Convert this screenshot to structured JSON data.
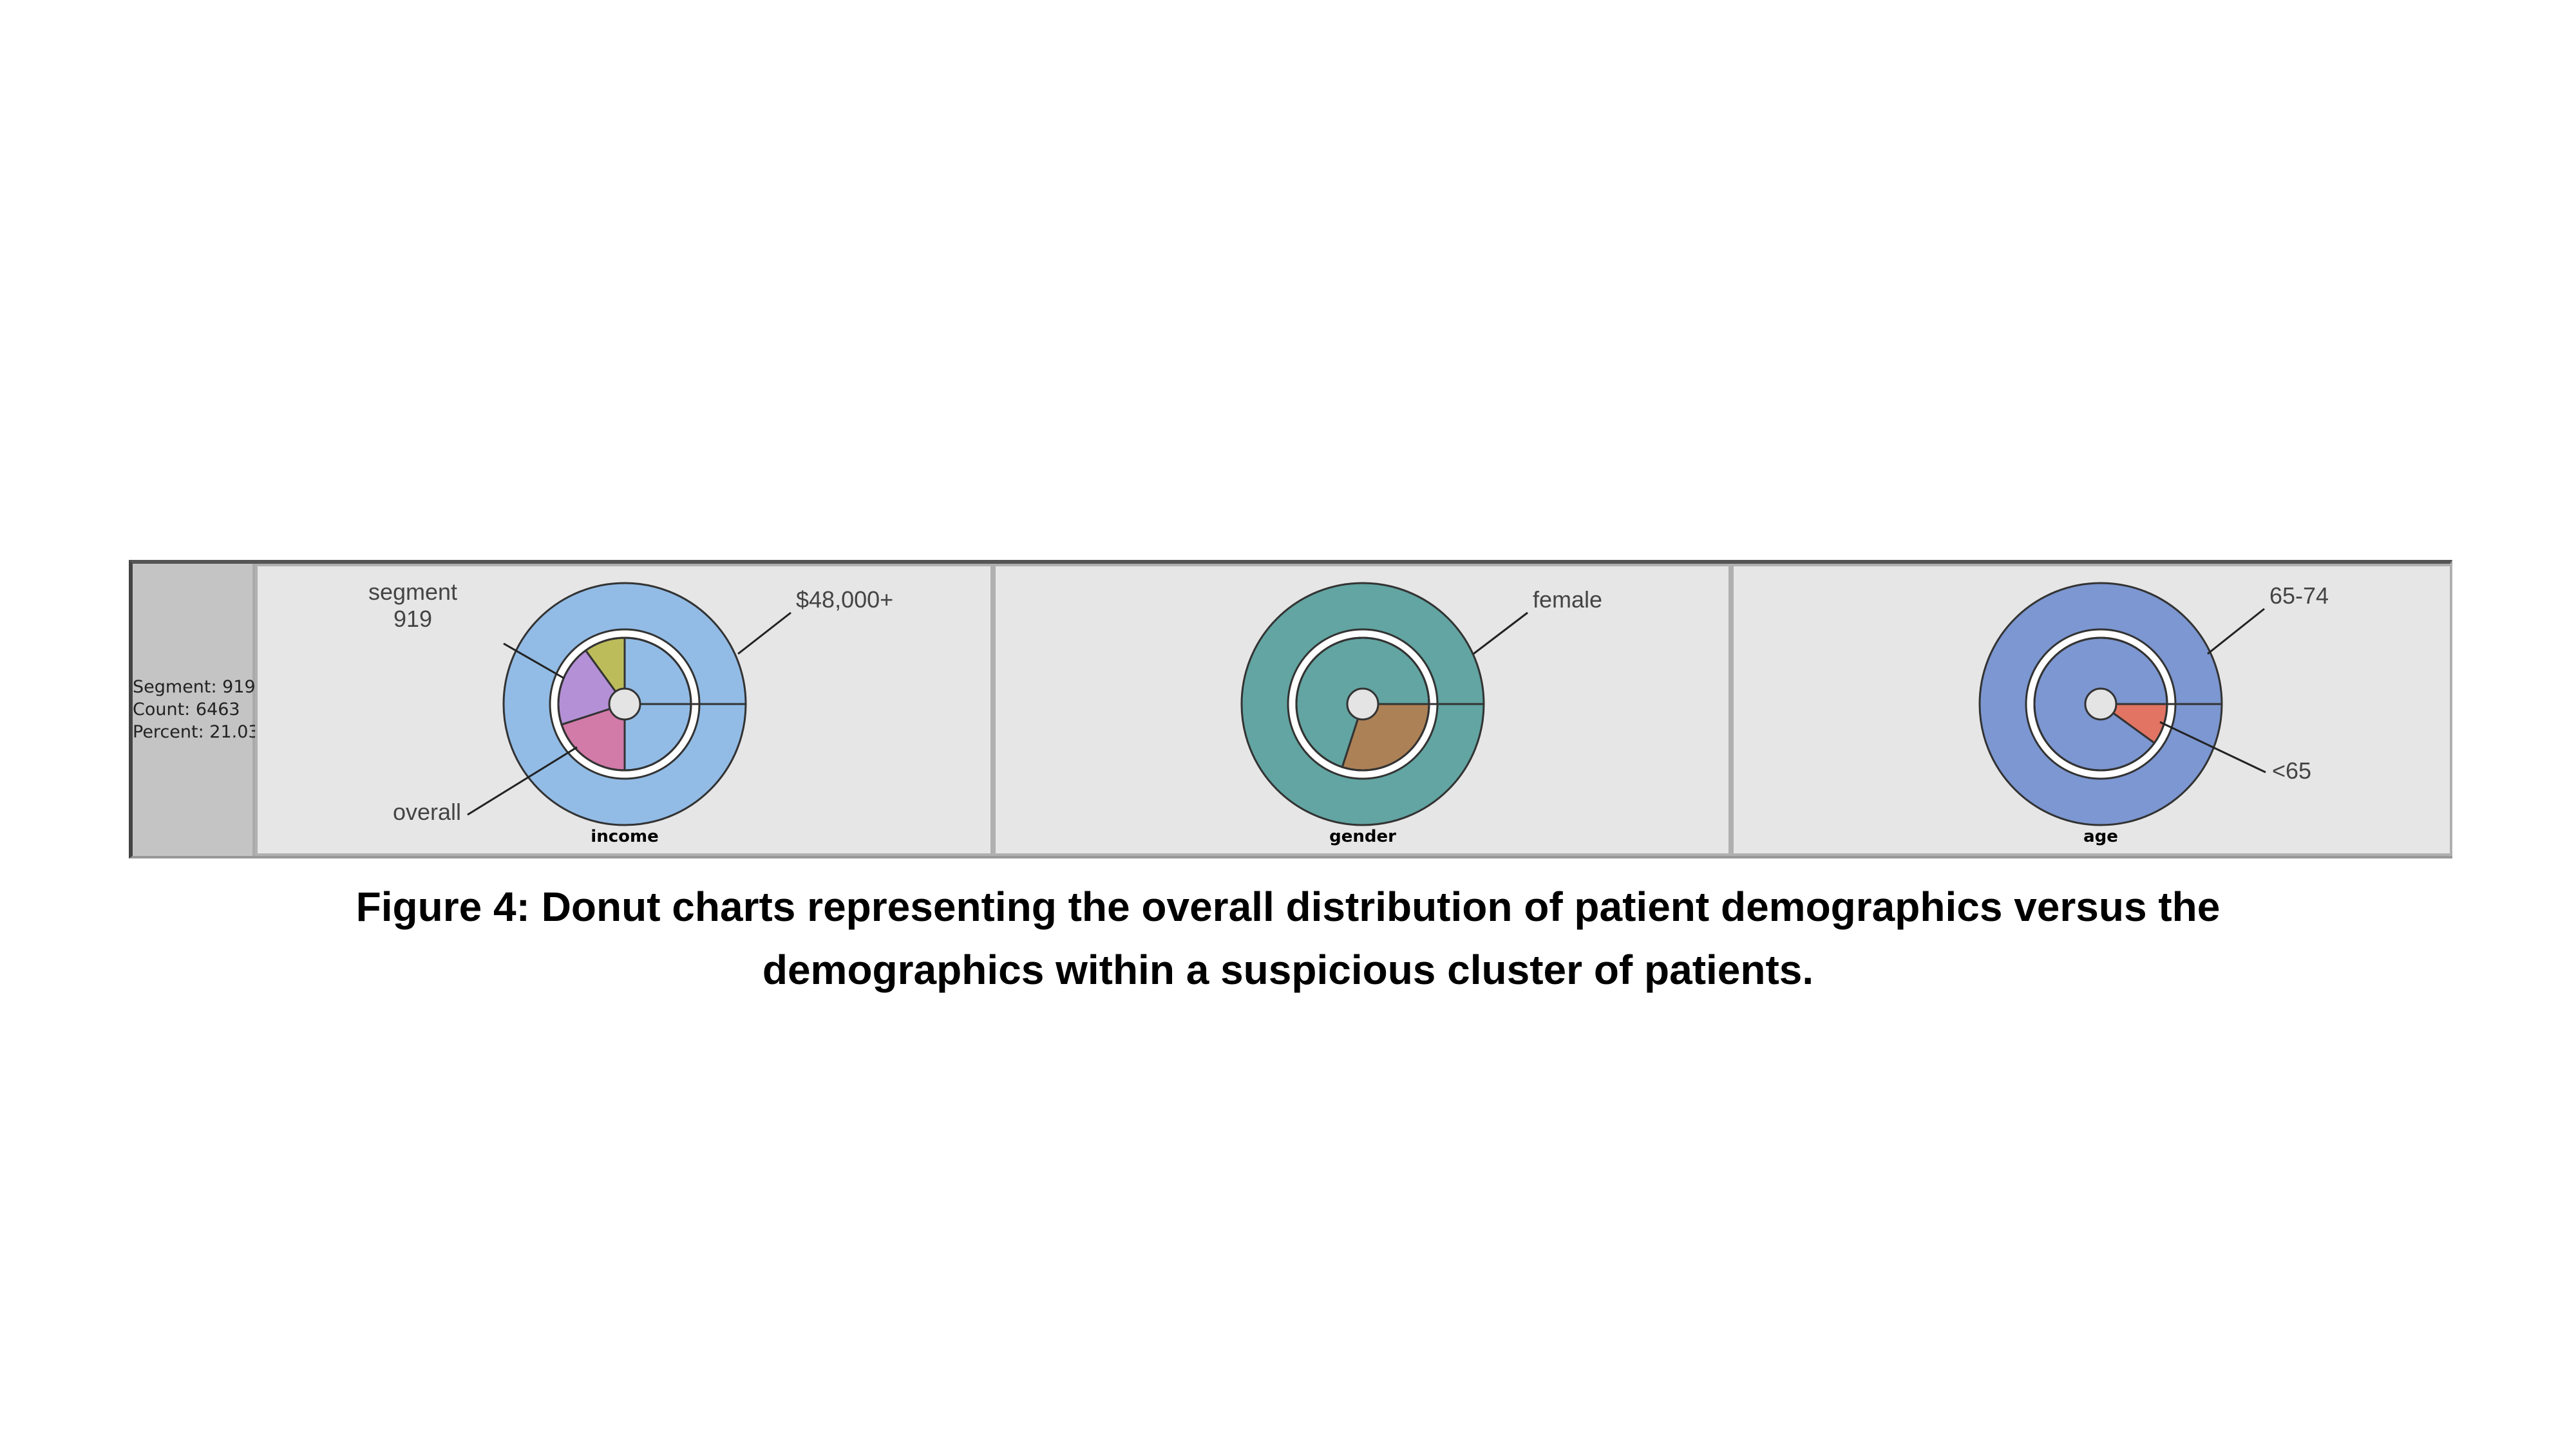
{
  "info": {
    "segment": "Segment: 919",
    "count": "Count: 6463",
    "percent": "Percent: 21.03"
  },
  "caption": {
    "line1": "Figure 4: Donut charts representing the overall distribution of patient demographics versus the",
    "line2": "demographics within a suspicious cluster of patients."
  },
  "colors": {
    "outline": "#333333",
    "inner_gap": "#ffffff",
    "hub": "#e4e4e4",
    "panel_bg": "#e6e6e6"
  },
  "chart_data": [
    {
      "type": "donut",
      "title": "income",
      "rings": [
        {
          "name": "segment",
          "level": "outer",
          "slices": [
            {
              "label": "$48,000+",
              "value": 1.0,
              "color": "#92bce6"
            }
          ]
        },
        {
          "name": "overall",
          "level": "inner",
          "slices": [
            {
              "label": "",
              "value": 0.25,
              "color": "#92bce6"
            },
            {
              "label": "",
              "value": 0.2,
              "color": "#d27aa8"
            },
            {
              "label": "",
              "value": 0.2,
              "color": "#b490d6"
            },
            {
              "label": "",
              "value": 0.1,
              "color": "#bcbc5a"
            },
            {
              "label": "",
              "value": 0.25,
              "color": "#92bce6"
            }
          ]
        }
      ],
      "annotations": [
        "segment\n919",
        "$48,000+",
        "overall"
      ]
    },
    {
      "type": "donut",
      "title": "gender",
      "rings": [
        {
          "name": "segment",
          "level": "outer",
          "slices": [
            {
              "label": "female",
              "value": 1.0,
              "color": "#62a5a2"
            }
          ]
        },
        {
          "name": "overall",
          "level": "inner",
          "slices": [
            {
              "label": "",
              "value": 0.3,
              "color": "#ad8156"
            },
            {
              "label": "female",
              "value": 0.7,
              "color": "#62a5a2"
            }
          ]
        }
      ],
      "annotations": [
        "female"
      ]
    },
    {
      "type": "donut",
      "title": "age",
      "rings": [
        {
          "name": "segment",
          "level": "outer",
          "slices": [
            {
              "label": "65-74",
              "value": 1.0,
              "color": "#7c97d1"
            }
          ]
        },
        {
          "name": "overall",
          "level": "inner",
          "slices": [
            {
              "label": "<65",
              "value": 0.1,
              "color": "#e17463"
            },
            {
              "label": "65-74",
              "value": 0.9,
              "color": "#7c97d1"
            }
          ]
        }
      ],
      "annotations": [
        "65-74",
        "<65"
      ]
    }
  ]
}
